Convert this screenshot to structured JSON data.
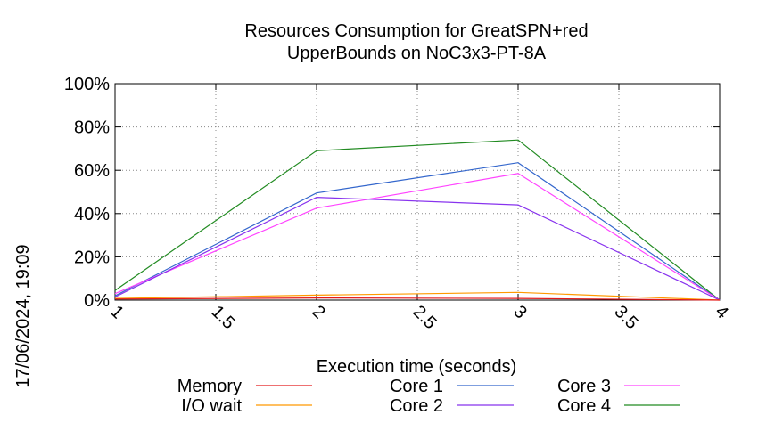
{
  "chart_data": {
    "type": "line",
    "title": [
      "Resources Consumption for GreatSPN+red",
      "UpperBounds on NoC3x3-PT-8A"
    ],
    "xlabel": "Execution time (seconds)",
    "ylabel": "",
    "timestamp": "17/06/2024, 19:09",
    "xlim": [
      1,
      4
    ],
    "ylim": [
      0,
      100
    ],
    "x_ticks": [
      "1",
      "1.5",
      "2",
      "2.5",
      "3",
      "3.5",
      "4"
    ],
    "x_tick_values": [
      1,
      1.5,
      2,
      2.5,
      3,
      3.5,
      4
    ],
    "y_ticks": [
      "0%",
      "20%",
      "40%",
      "60%",
      "80%",
      "100%"
    ],
    "y_tick_values": [
      0,
      20,
      40,
      60,
      80,
      100
    ],
    "grid": true,
    "legend_position": "bottom",
    "series": [
      {
        "name": "Memory",
        "color": "#e41a1c",
        "x": [
          1,
          2,
          3,
          4
        ],
        "y": [
          0.5,
          1.0,
          0.8,
          0
        ]
      },
      {
        "name": "I/O wait",
        "color": "#ff9900",
        "x": [
          1,
          2,
          3,
          4
        ],
        "y": [
          0.8,
          2.3,
          3.6,
          0
        ]
      },
      {
        "name": "Core 1",
        "color": "#3366cc",
        "x": [
          1,
          2,
          3,
          4
        ],
        "y": [
          2,
          49.5,
          63.5,
          0
        ]
      },
      {
        "name": "Core 2",
        "color": "#8833ee",
        "x": [
          1,
          2,
          3,
          4
        ],
        "y": [
          1.5,
          47.5,
          44,
          0
        ]
      },
      {
        "name": "Core 3",
        "color": "#ff44ff",
        "x": [
          1,
          2,
          3,
          4
        ],
        "y": [
          3,
          42.5,
          58.5,
          0
        ]
      },
      {
        "name": "Core 4",
        "color": "#228b22",
        "x": [
          1,
          2,
          3,
          4
        ],
        "y": [
          4.5,
          69,
          74,
          0
        ]
      }
    ]
  }
}
